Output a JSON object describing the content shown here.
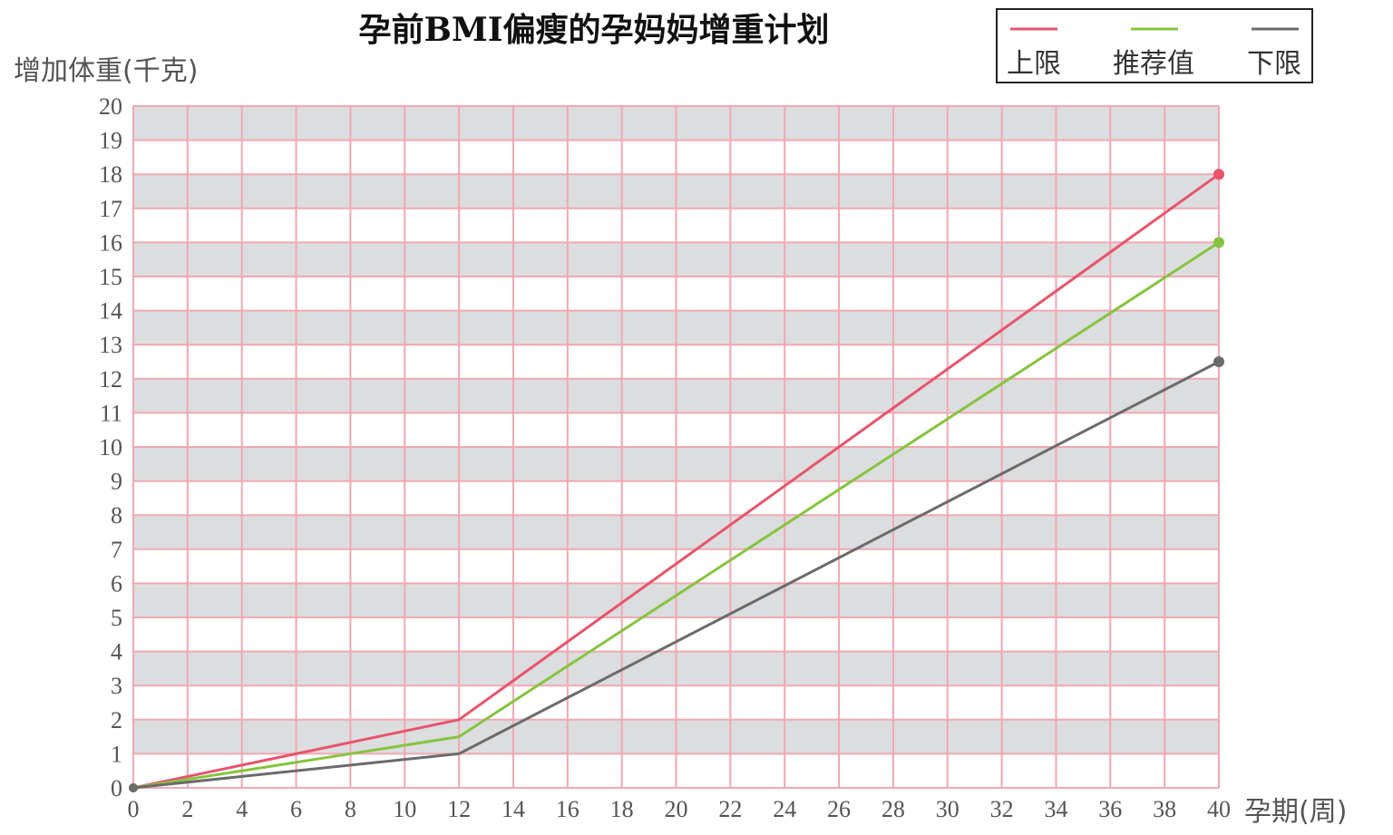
{
  "chart_data": {
    "type": "line",
    "title": "孕前BMI偏瘦的孕妈妈增重计划",
    "ylabel": "增加体重(千克)",
    "xlabel": "孕期(周)",
    "x_ticks": [
      0,
      2,
      4,
      6,
      8,
      10,
      12,
      14,
      16,
      18,
      20,
      22,
      24,
      26,
      28,
      30,
      32,
      34,
      36,
      38,
      40
    ],
    "y_ticks": [
      0,
      1,
      2,
      3,
      4,
      5,
      6,
      7,
      8,
      9,
      10,
      11,
      12,
      13,
      14,
      15,
      16,
      17,
      18,
      19,
      20
    ],
    "xlim": [
      0,
      40
    ],
    "ylim": [
      0,
      20
    ],
    "grid": true,
    "legend_position": "top-right",
    "series": [
      {
        "name": "上限",
        "color": "#e8546c",
        "x": [
          0,
          12,
          40
        ],
        "y": [
          0,
          2,
          18
        ]
      },
      {
        "name": "推荐值",
        "color": "#86c440",
        "x": [
          0,
          12,
          40
        ],
        "y": [
          0,
          1.5,
          16
        ]
      },
      {
        "name": "下限",
        "color": "#6b6b6b",
        "x": [
          0,
          12,
          40
        ],
        "y": [
          0,
          1,
          12.5
        ]
      }
    ]
  },
  "colors": {
    "grid_line": "#f0a8b2",
    "band_fill": "#dcdddf",
    "text": "#555555"
  }
}
